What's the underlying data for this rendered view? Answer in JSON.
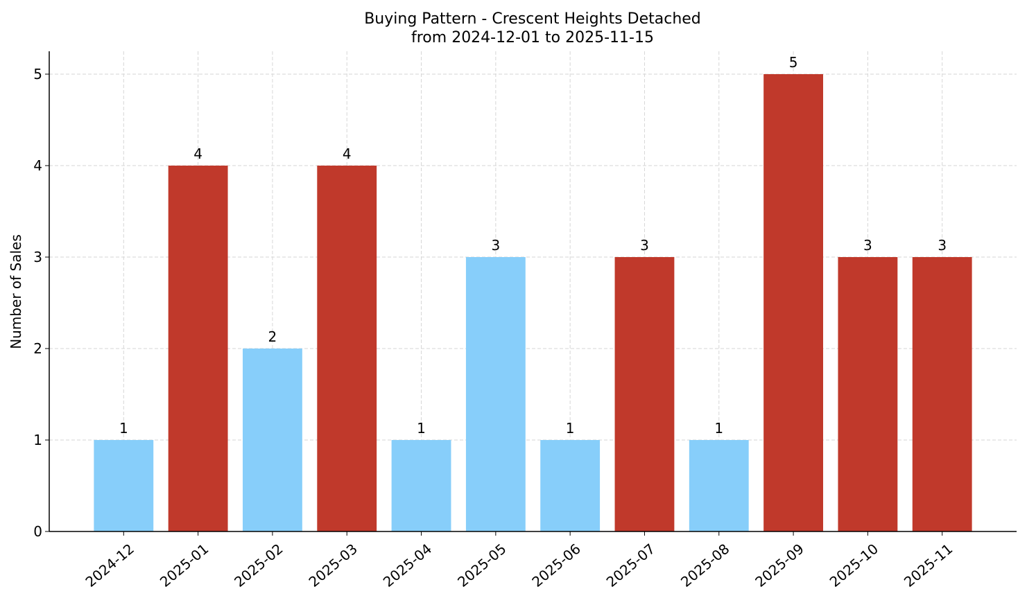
{
  "chart_data": {
    "type": "bar",
    "title": "Buying Pattern - Crescent Heights Detached",
    "subtitle": "from 2024-12-01 to 2025-11-15",
    "y_label": "Number of Sales",
    "categories": [
      "2024-12",
      "2025-01",
      "2025-02",
      "2025-03",
      "2025-04",
      "2025-05",
      "2025-06",
      "2025-07",
      "2025-08",
      "2025-09",
      "2025-10",
      "2025-11"
    ],
    "values": [
      1,
      4,
      2,
      4,
      1,
      3,
      1,
      3,
      1,
      5,
      3,
      3
    ],
    "colors": [
      "#87cefa",
      "#c0392b",
      "#87cefa",
      "#c0392b",
      "#87cefa",
      "#87cefa",
      "#87cefa",
      "#c0392b",
      "#87cefa",
      "#c0392b",
      "#c0392b",
      "#c0392b"
    ],
    "ylim": [
      0,
      5.25
    ],
    "yticks": [
      0,
      1,
      2,
      3,
      4,
      5
    ],
    "grid": true
  }
}
